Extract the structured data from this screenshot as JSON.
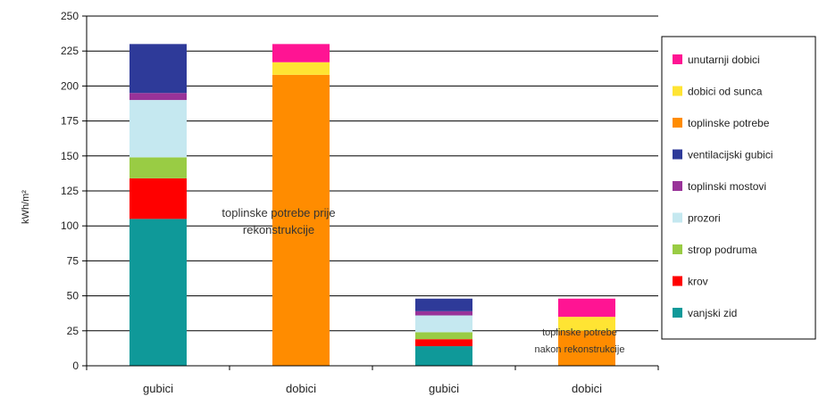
{
  "chart_data": {
    "type": "bar",
    "stacked": true,
    "categories": [
      "gubici",
      "dobici",
      "gubici",
      "dobici"
    ],
    "ylabel": "kWh/m²",
    "ylim": [
      0,
      250
    ],
    "yticks": [
      0,
      25,
      50,
      75,
      100,
      125,
      150,
      175,
      200,
      225,
      250
    ],
    "grid": true,
    "legend_position": "right",
    "series": [
      {
        "name": "vanjski zid",
        "color": "#0f9999",
        "values": [
          105,
          0,
          14,
          0
        ]
      },
      {
        "name": "krov",
        "color": "#ff0000",
        "values": [
          29,
          0,
          5,
          0
        ]
      },
      {
        "name": "strop podruma",
        "color": "#99cc44",
        "values": [
          15,
          0,
          5,
          0
        ]
      },
      {
        "name": "prozori",
        "color": "#c5e8f0",
        "values": [
          41,
          0,
          12,
          0
        ]
      },
      {
        "name": "toplinski mostovi",
        "color": "#993399",
        "values": [
          5,
          0,
          3,
          0
        ]
      },
      {
        "name": "ventilacijski gubici",
        "color": "#2e3a99",
        "values": [
          35,
          0,
          9,
          0
        ]
      },
      {
        "name": "toplinske potrebe",
        "color": "#ff8c00",
        "values": [
          0,
          208,
          0,
          25
        ]
      },
      {
        "name": "dobici od sunca",
        "color": "#ffe433",
        "values": [
          0,
          9,
          0,
          10
        ]
      },
      {
        "name": "unutarnji dobici",
        "color": "#ff1493",
        "values": [
          0,
          13,
          0,
          13
        ]
      }
    ],
    "legend_order": [
      "unutarnji dobici",
      "dobici od sunca",
      "toplinske potrebe",
      "ventilacijski gubici",
      "toplinski mostovi",
      "prozori",
      "strop podruma",
      "krov",
      "vanjski zid"
    ],
    "annotations": [
      {
        "lines": [
          "toplinske potrebe prije",
          "rekonstrukcije"
        ]
      },
      {
        "lines": [
          "toplinske potrebe",
          "nakon rekonstrukcije"
        ]
      }
    ]
  }
}
